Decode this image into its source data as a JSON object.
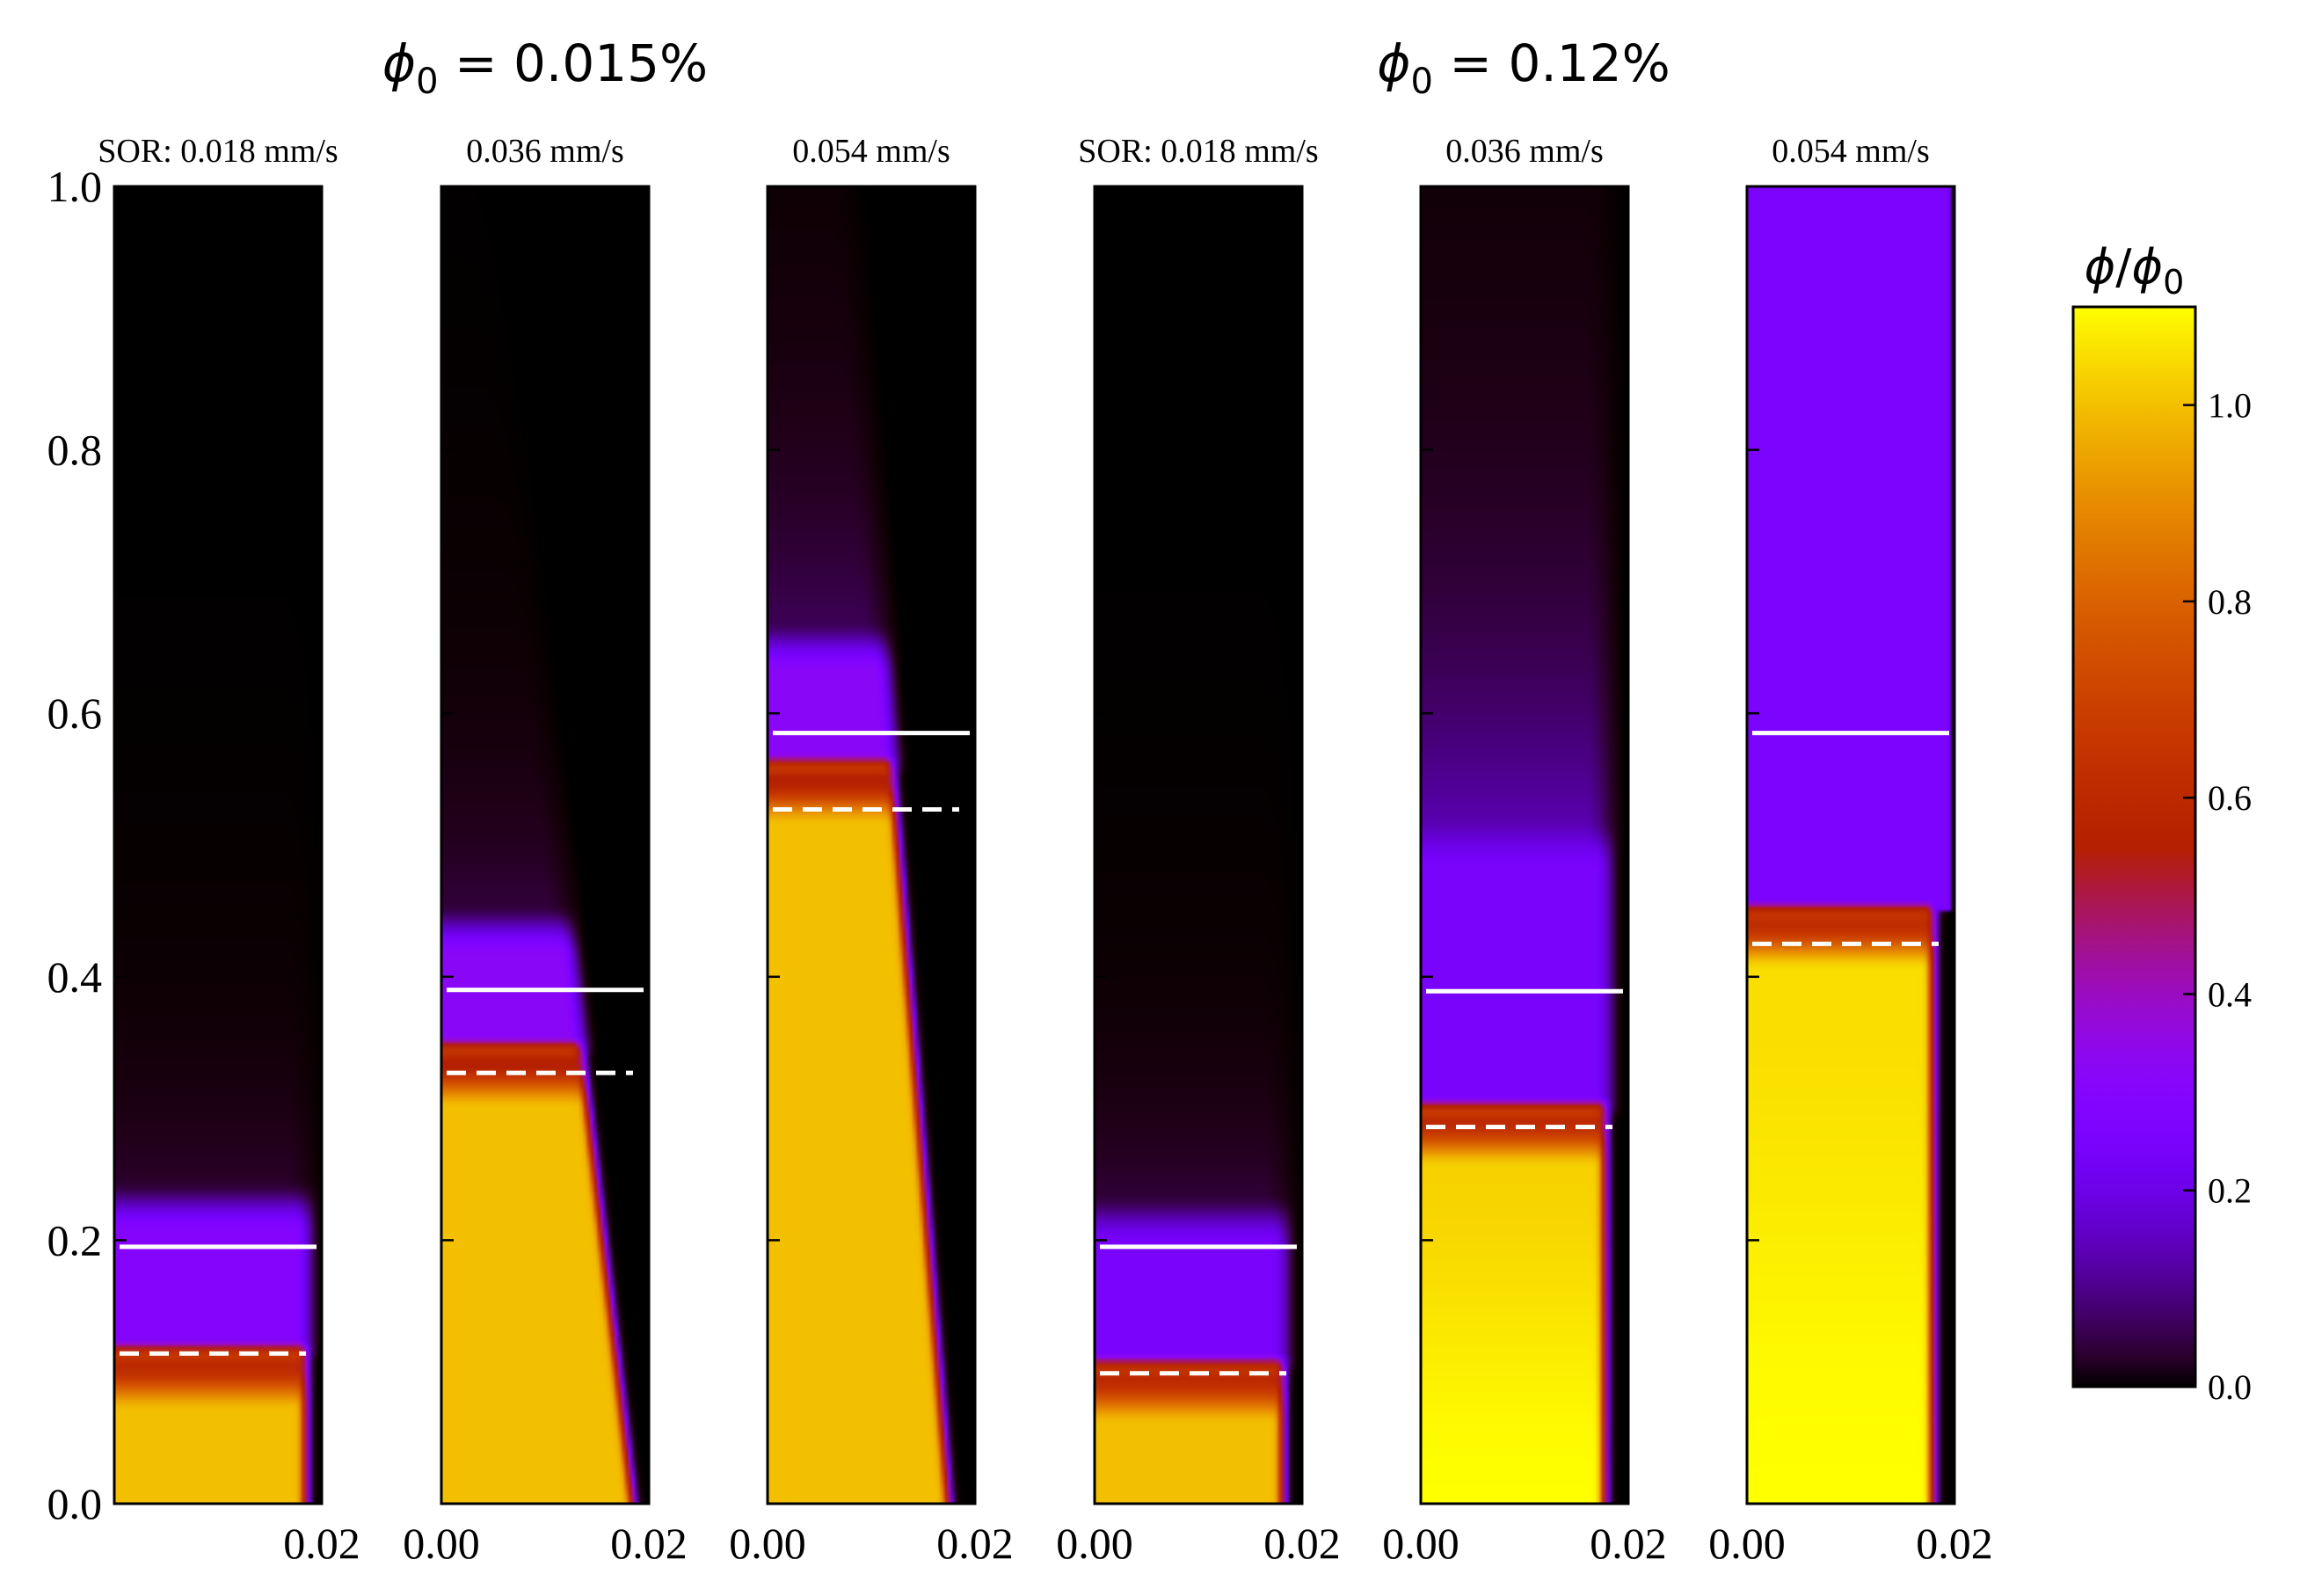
{
  "chart_data": {
    "type": "heatmap",
    "colormap": "gnuplot",
    "colorbar": {
      "label": "ϕ/ϕ₀",
      "label_italic": "ϕ",
      "label_sub": "0",
      "range": [
        0.0,
        1.1
      ],
      "ticks": [
        "0.0",
        "0.2",
        "0.4",
        "0.6",
        "0.8",
        "1.0"
      ]
    },
    "y_axis": {
      "range": [
        0.0,
        1.0
      ],
      "ticks": [
        "0.0",
        "0.2",
        "0.4",
        "0.6",
        "0.8",
        "1.0"
      ]
    },
    "x_axis": {
      "range": [
        0.0,
        0.02
      ]
    },
    "groups": [
      {
        "title_var": "ϕ",
        "title_sub": "0",
        "title_value": " = 0.015%",
        "panels": [
          0,
          1,
          2
        ]
      },
      {
        "title_var": "ϕ",
        "title_sub": "0",
        "title_value": " = 0.12%",
        "panels": [
          3,
          4,
          5
        ]
      }
    ],
    "panels": [
      {
        "title": "SOR: 0.018 mm/s",
        "x_ticks": [
          "0.02"
        ],
        "solid_line": 0.195,
        "dashed_line": 0.114,
        "front": 0.115,
        "core": 1.0,
        "mix": 0.6,
        "halo": 0.11,
        "halo_color": 0.3,
        "diffuse": 0.04,
        "edge": 0.0185,
        "slope": 0.0,
        "bottom_boost": 0.0,
        "tail": 0.2
      },
      {
        "title": "0.036 mm/s",
        "x_ticks": [
          "0.00",
          "0.02"
        ],
        "solid_line": 0.39,
        "dashed_line": 0.327,
        "front": 0.345,
        "core": 1.0,
        "mix": 0.55,
        "halo": 0.09,
        "halo_color": 0.32,
        "diffuse": 0.05,
        "edge": 0.0185,
        "slope": 0.005,
        "bottom_boost": 0.0,
        "tail": 0.25
      },
      {
        "title": "0.054 mm/s",
        "x_ticks": [
          "0.00",
          "0.02"
        ],
        "solid_line": 0.585,
        "dashed_line": 0.527,
        "front": 0.56,
        "core": 1.0,
        "mix": 0.55,
        "halo": 0.09,
        "halo_color": 0.32,
        "diffuse": 0.07,
        "edge": 0.0175,
        "slope": 0.0055,
        "bottom_boost": 0.0,
        "tail": 0.35
      },
      {
        "title": "SOR: 0.018 mm/s",
        "x_ticks": [
          "0.00",
          "0.02"
        ],
        "solid_line": 0.195,
        "dashed_line": 0.099,
        "front": 0.105,
        "core": 1.0,
        "mix": 0.6,
        "halo": 0.11,
        "halo_color": 0.25,
        "diffuse": 0.05,
        "edge": 0.0182,
        "slope": 0.0,
        "bottom_boost": 0.0,
        "tail": 0.2
      },
      {
        "title": "0.036 mm/s",
        "x_ticks": [
          "0.00",
          "0.02"
        ],
        "solid_line": 0.389,
        "dashed_line": 0.286,
        "front": 0.3,
        "core": 1.03,
        "mix": 0.6,
        "halo": 0.2,
        "halo_color": 0.25,
        "diffuse": 0.15,
        "edge": 0.0178,
        "slope": 0.0,
        "bottom_boost": 0.07,
        "tail": 0.45
      },
      {
        "title": "0.054 mm/s",
        "x_ticks": [
          "0.00",
          "0.02"
        ],
        "solid_line": 0.585,
        "dashed_line": 0.425,
        "front": 0.45,
        "core": 1.05,
        "mix": 0.62,
        "halo": 0.55,
        "halo_color": 0.25,
        "diffuse": 0.0,
        "edge": 0.018,
        "slope": 0.0,
        "bottom_boost": 0.05,
        "tail": 0.0,
        "background": 0.12
      }
    ]
  }
}
